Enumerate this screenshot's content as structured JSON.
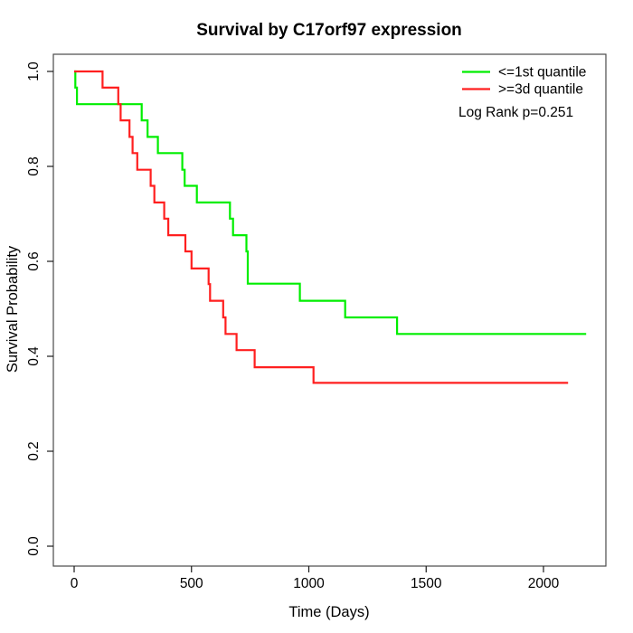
{
  "title": "Survival by C17orf97 expression",
  "legend": {
    "series": [
      {
        "label": "<=1st quantile",
        "color": "#00ee00"
      },
      {
        "label": ">=3d quantile",
        "color": "#ff1f1f"
      }
    ],
    "stat": "Log Rank p=0.251"
  },
  "chart_data": {
    "type": "line",
    "subtype": "kaplan-meier-step",
    "title": "Survival by C17orf97 expression",
    "xlabel": "Time (Days)",
    "ylabel": "Survival Probability",
    "xlim": [
      0,
      2260
    ],
    "ylim": [
      0.0,
      1.0
    ],
    "x_ticks": [
      0,
      500,
      1000,
      1500,
      2000
    ],
    "y_tick_labels": [
      "0.0",
      "0.2",
      "0.4",
      "0.6",
      "0.8",
      "1.0"
    ],
    "grid": false,
    "legend_position": "top-right",
    "log_rank_p": 0.251,
    "series": [
      {
        "name": "<=1st quantile",
        "color": "#00ee00",
        "end_time": 2182,
        "final_value": 0.447,
        "points": [
          [
            0,
            1.0
          ],
          [
            5,
            0.966
          ],
          [
            12,
            0.931
          ],
          [
            288,
            0.897
          ],
          [
            313,
            0.862
          ],
          [
            357,
            0.828
          ],
          [
            461,
            0.793
          ],
          [
            471,
            0.759
          ],
          [
            523,
            0.724
          ],
          [
            664,
            0.69
          ],
          [
            677,
            0.655
          ],
          [
            734,
            0.621
          ],
          [
            740,
            0.553
          ],
          [
            962,
            0.517
          ],
          [
            1155,
            0.482
          ],
          [
            1376,
            0.447
          ]
        ]
      },
      {
        "name": ">=3d quantile",
        "color": "#ff1f1f",
        "end_time": 2105,
        "final_value": 0.344,
        "points": [
          [
            0,
            1.0
          ],
          [
            121,
            0.966
          ],
          [
            188,
            0.931
          ],
          [
            198,
            0.897
          ],
          [
            236,
            0.862
          ],
          [
            249,
            0.828
          ],
          [
            269,
            0.793
          ],
          [
            326,
            0.759
          ],
          [
            342,
            0.724
          ],
          [
            384,
            0.69
          ],
          [
            401,
            0.655
          ],
          [
            474,
            0.621
          ],
          [
            500,
            0.585
          ],
          [
            573,
            0.552
          ],
          [
            579,
            0.517
          ],
          [
            635,
            0.482
          ],
          [
            645,
            0.447
          ],
          [
            692,
            0.413
          ],
          [
            769,
            0.377
          ],
          [
            1020,
            0.344
          ]
        ]
      }
    ]
  }
}
